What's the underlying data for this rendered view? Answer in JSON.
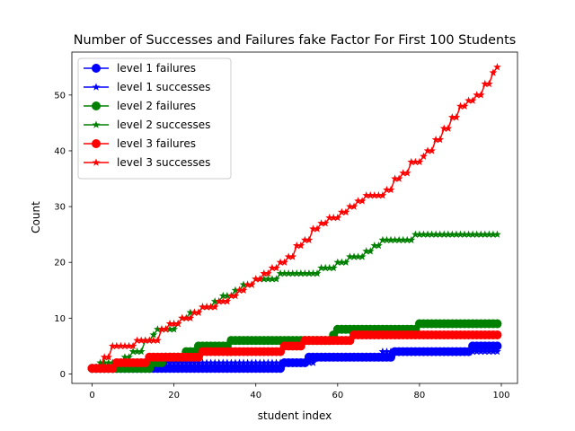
{
  "chart_data": {
    "type": "line",
    "title": "Number of Successes and Failures fake Factor For First 100 Students",
    "xlabel": "student index",
    "ylabel": "Count",
    "xlim": [
      -4.95,
      103.95
    ],
    "ylim": [
      -1.7,
      57.7
    ],
    "xticks": [
      0,
      20,
      40,
      60,
      80,
      100
    ],
    "yticks": [
      0,
      10,
      20,
      30,
      40,
      50
    ],
    "legend_position": "upper-left",
    "x_start": 0,
    "series": [
      {
        "name": "level 1 failures",
        "color": "#0000ff",
        "marker": "circle",
        "steps": [
          [
            0,
            1
          ],
          [
            47,
            2
          ],
          [
            53,
            3
          ],
          [
            73,
            3
          ],
          [
            74,
            4
          ],
          [
            92,
            4
          ],
          [
            93,
            5
          ]
        ]
      },
      {
        "name": "level 1 successes",
        "color": "#0000ff",
        "marker": "star",
        "steps": [
          [
            0,
            1
          ],
          [
            12,
            1
          ],
          [
            13,
            2
          ],
          [
            46,
            2
          ],
          [
            47,
            2
          ],
          [
            55,
            3
          ],
          [
            71,
            4
          ],
          [
            96,
            4
          ]
        ]
      },
      {
        "name": "level 2 failures",
        "color": "#008000",
        "marker": "circle",
        "steps": [
          [
            0,
            1
          ],
          [
            15,
            2
          ],
          [
            18,
            3
          ],
          [
            23,
            4
          ],
          [
            26,
            5
          ],
          [
            34,
            6
          ],
          [
            59,
            7
          ],
          [
            60,
            8
          ],
          [
            80,
            9
          ]
        ]
      },
      {
        "name": "level 2 successes",
        "color": "#008000",
        "marker": "star",
        "steps": [
          [
            0,
            1
          ],
          [
            2,
            2
          ],
          [
            8,
            3
          ],
          [
            10,
            4
          ],
          [
            13,
            6
          ],
          [
            15,
            7
          ],
          [
            16,
            8
          ],
          [
            19,
            8
          ],
          [
            21,
            9
          ],
          [
            22,
            10
          ],
          [
            24,
            11
          ],
          [
            27,
            12
          ],
          [
            30,
            13
          ],
          [
            32,
            14
          ],
          [
            35,
            15
          ],
          [
            37,
            16
          ],
          [
            40,
            17
          ],
          [
            46,
            18
          ],
          [
            56,
            19
          ],
          [
            60,
            20
          ],
          [
            63,
            21
          ],
          [
            67,
            22
          ],
          [
            69,
            23
          ],
          [
            71,
            24
          ],
          [
            79,
            25
          ]
        ]
      },
      {
        "name": "level 3 failures",
        "color": "#ff0000",
        "marker": "circle",
        "steps": [
          [
            0,
            1
          ],
          [
            6,
            2
          ],
          [
            12,
            2
          ],
          [
            14,
            3
          ],
          [
            21,
            3
          ],
          [
            27,
            4
          ],
          [
            47,
            5
          ],
          [
            51,
            5
          ],
          [
            52,
            6
          ],
          [
            64,
            7
          ]
        ]
      },
      {
        "name": "level 3 successes",
        "color": "#ff0000",
        "marker": "star",
        "steps": [
          [
            0,
            1
          ],
          [
            3,
            3
          ],
          [
            5,
            5
          ],
          [
            11,
            6
          ],
          [
            17,
            8
          ],
          [
            19,
            9
          ],
          [
            22,
            10
          ],
          [
            25,
            11
          ],
          [
            27,
            12
          ],
          [
            31,
            13
          ],
          [
            34,
            14
          ],
          [
            36,
            15
          ],
          [
            38,
            16
          ],
          [
            40,
            17
          ],
          [
            42,
            18
          ],
          [
            44,
            19
          ],
          [
            46,
            20
          ],
          [
            48,
            21
          ],
          [
            50,
            23
          ],
          [
            52,
            24
          ],
          [
            54,
            26
          ],
          [
            56,
            27
          ],
          [
            58,
            28
          ],
          [
            61,
            29
          ],
          [
            63,
            30
          ],
          [
            65,
            31
          ],
          [
            67,
            32
          ],
          [
            72,
            33
          ],
          [
            74,
            35
          ],
          [
            76,
            36
          ],
          [
            78,
            38
          ],
          [
            81,
            39
          ],
          [
            82,
            40
          ],
          [
            84,
            42
          ],
          [
            86,
            44
          ],
          [
            88,
            46
          ],
          [
            90,
            48
          ],
          [
            92,
            49
          ],
          [
            94,
            50
          ],
          [
            96,
            52
          ],
          [
            98,
            54
          ],
          [
            99,
            55
          ]
        ]
      }
    ]
  }
}
